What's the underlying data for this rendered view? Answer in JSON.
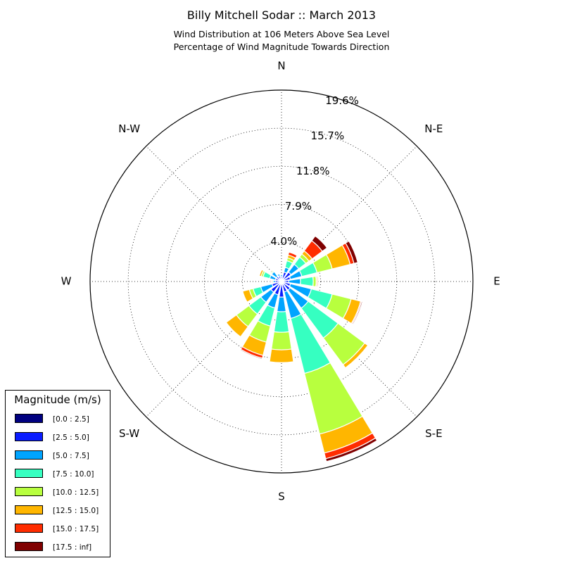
{
  "header": {
    "title": "Billy Mitchell Sodar :: March 2013",
    "subtitle_line1": "Wind Distribution at 106 Meters Above Sea Level",
    "subtitle_line2": "Percentage of Wind Magnitude Towards Direction"
  },
  "chart_data": {
    "type": "windrose",
    "title": "Billy Mitchell Sodar :: March 2013",
    "subtitle": "Wind Distribution at 106 Meters Above Sea Level | Percentage of Wind Magnitude Towards Direction",
    "directions": [
      "N",
      "NNE",
      "NE",
      "ENE",
      "E",
      "ESE",
      "SE",
      "SSE",
      "S",
      "SSW",
      "SW",
      "WSW",
      "W",
      "WNW",
      "NW",
      "NNW"
    ],
    "direction_labels": [
      "N",
      "N-E",
      "E",
      "S-E",
      "S",
      "S-W",
      "W",
      "N-W"
    ],
    "radial_ticks": [
      "4.0%",
      "7.9%",
      "11.8%",
      "15.7%",
      "19.6%"
    ],
    "radial_tick_values": [
      4.0,
      7.9,
      11.8,
      15.7,
      19.6
    ],
    "rmax": 19.6,
    "bin_colors": [
      "#000080",
      "#0a1cff",
      "#00a4ff",
      "#36ffc1",
      "#b8ff3e",
      "#ffb600",
      "#ff2c00",
      "#800000"
    ],
    "series": [
      {
        "name": "[0.0 : 2.5]",
        "values": [
          0.1,
          0.2,
          0.2,
          0.15,
          0.15,
          0.15,
          0.2,
          0.2,
          0.2,
          0.2,
          0.25,
          0.2,
          0.15,
          0.15,
          0.15,
          0.15
        ]
      },
      {
        "name": "[2.5 : 5.0]",
        "values": [
          0.4,
          0.8,
          1.0,
          0.8,
          0.6,
          0.8,
          0.9,
          0.9,
          1.4,
          1.2,
          1.1,
          0.8,
          0.5,
          0.5,
          0.5,
          0.45
        ]
      },
      {
        "name": "[5.0 : 7.5]",
        "values": [
          0.2,
          0.5,
          1.0,
          1.2,
          1.2,
          2.2,
          2.3,
          2.8,
          1.5,
          1.4,
          1.3,
          1.2,
          0.2,
          0.6,
          0.6,
          0.2
        ]
      },
      {
        "name": "[7.5 : 10.0]",
        "values": [
          0.0,
          0.7,
          0.9,
          1.6,
          1.3,
          2.2,
          3.8,
          5.8,
          2.1,
          1.9,
          1.5,
          0.8,
          0.0,
          0.7,
          0.1,
          0.0
        ]
      },
      {
        "name": "[10.0 : 12.5]",
        "values": [
          0.0,
          0.3,
          0.4,
          1.6,
          0.3,
          2.0,
          3.4,
          6.4,
          1.8,
          1.7,
          1.6,
          0.4,
          0.1,
          0.2,
          0.1,
          0.0
        ]
      },
      {
        "name": "[12.5 : 15.0]",
        "values": [
          0.0,
          0.3,
          0.4,
          1.9,
          0.1,
          1.0,
          0.4,
          2.0,
          1.3,
          1.4,
          1.3,
          0.7,
          0.1,
          0.2,
          0.0,
          0.0
        ]
      },
      {
        "name": "[15.0 : 17.5]",
        "values": [
          0.0,
          0.3,
          1.3,
          0.4,
          0.1,
          0.1,
          0.0,
          0.6,
          0.0,
          0.3,
          0.0,
          0.0,
          0.1,
          0.0,
          0.0,
          0.0
        ]
      },
      {
        "name": "[17.5 : inf]",
        "values": [
          0.0,
          0.0,
          0.6,
          0.4,
          0.0,
          0.1,
          0.0,
          0.3,
          0.0,
          0.1,
          0.0,
          0.0,
          0.0,
          0.0,
          0.0,
          0.0
        ]
      }
    ],
    "legend_title": "Magnitude (m/s)",
    "legend_position": "lower-left"
  }
}
